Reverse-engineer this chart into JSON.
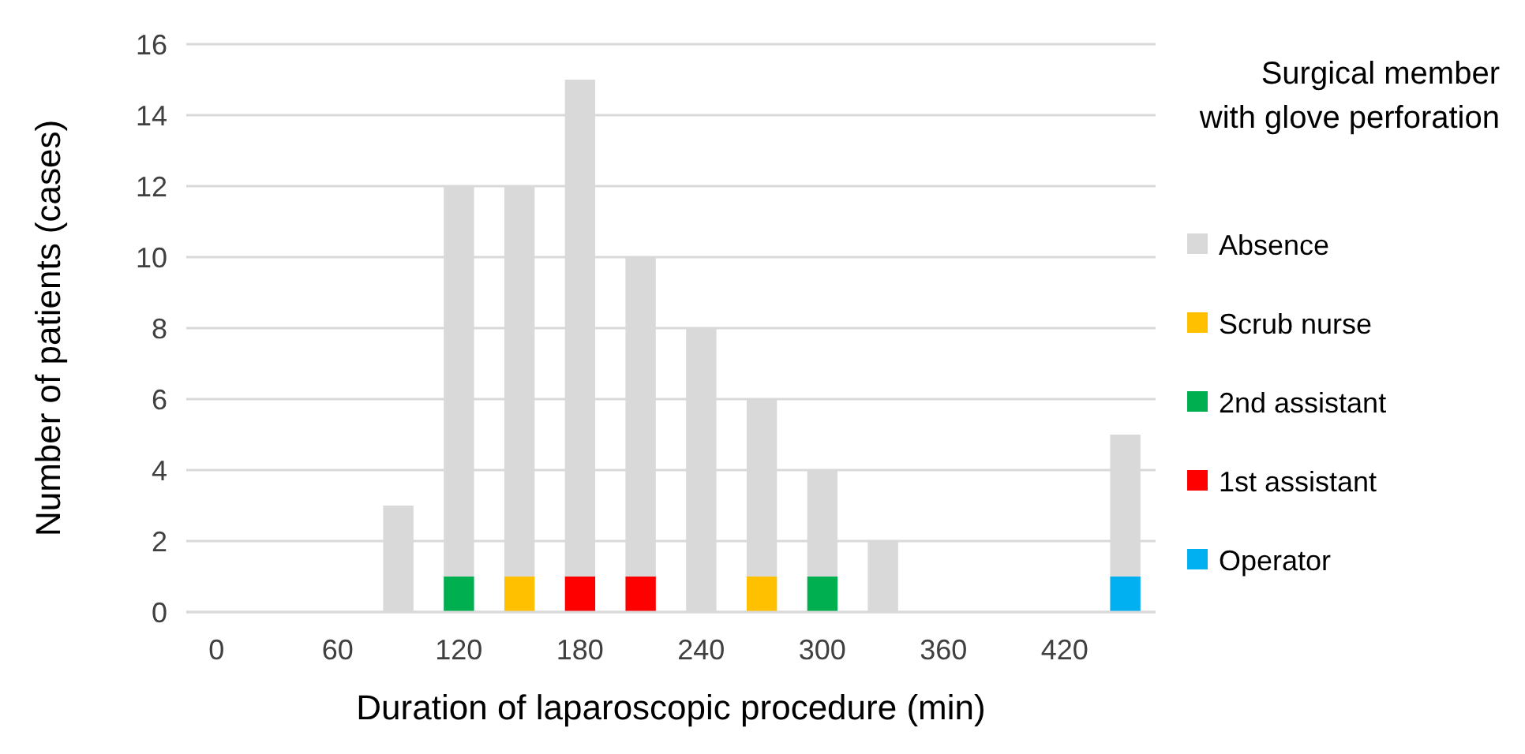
{
  "chart_data": {
    "type": "bar",
    "stacked": true,
    "xlabel": "Duration of laparoscopic procedure (min)",
    "ylabel": "Number of patients (cases)",
    "legend_title": "Surgical member\nwith glove perforation",
    "legend": "right",
    "grid": "y",
    "categories": [
      "0",
      null,
      "60",
      null,
      "120",
      null,
      "180",
      null,
      "240",
      null,
      "300",
      null,
      "360",
      null,
      "420",
      null
    ],
    "ylim": [
      0,
      16
    ],
    "yticks": [
      0,
      2,
      4,
      6,
      8,
      10,
      12,
      14,
      16
    ],
    "series": [
      {
        "name": "Operator",
        "color": "#00b0f0",
        "values": [
          null,
          null,
          null,
          null,
          null,
          null,
          null,
          null,
          null,
          null,
          null,
          null,
          null,
          null,
          null,
          1
        ]
      },
      {
        "name": "1st assistant",
        "color": "#ff0000",
        "values": [
          null,
          null,
          null,
          null,
          null,
          null,
          1,
          1,
          null,
          null,
          null,
          null,
          null,
          null,
          null,
          null
        ]
      },
      {
        "name": "2nd assistant",
        "color": "#00b050",
        "values": [
          null,
          null,
          null,
          null,
          1,
          null,
          null,
          null,
          null,
          null,
          1,
          null,
          null,
          null,
          null,
          null
        ]
      },
      {
        "name": "Scrub nurse",
        "color": "#ffc000",
        "values": [
          null,
          null,
          null,
          null,
          null,
          1,
          null,
          null,
          null,
          1,
          null,
          null,
          null,
          null,
          null,
          null
        ]
      },
      {
        "name": "Absence",
        "color": "#d9d9d9",
        "values": [
          null,
          null,
          null,
          3,
          11,
          11,
          14,
          9,
          8,
          5,
          3,
          2,
          null,
          null,
          null,
          4
        ]
      }
    ]
  }
}
